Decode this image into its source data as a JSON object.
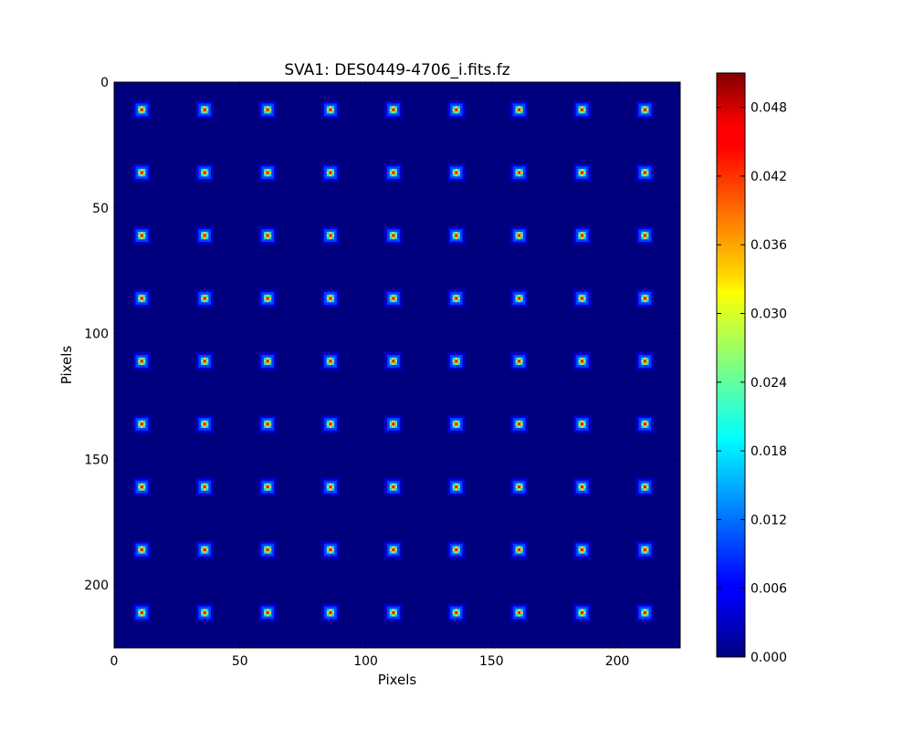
{
  "chart_data": {
    "type": "heatmap",
    "title": "SVA1: DES0449-4706_i.fits.fz",
    "xlabel": "Pixels",
    "ylabel": "Pixels",
    "xlim": [
      0,
      225
    ],
    "ylim": [
      225,
      0
    ],
    "y_axis_inverted": true,
    "x_ticks": [
      0,
      50,
      100,
      150,
      200
    ],
    "y_ticks": [
      0,
      50,
      100,
      150,
      200
    ],
    "colormap": "jet",
    "background_value": 0.0,
    "grid": false,
    "psf_stamps": {
      "x_centers": [
        11,
        36,
        61,
        86,
        111,
        136,
        161,
        186,
        211
      ],
      "y_centers": [
        11,
        36,
        61,
        86,
        111,
        136,
        161,
        186,
        211
      ],
      "peak_value": 0.05
    },
    "colorbar": {
      "vmin": 0.0,
      "vmax": 0.051,
      "ticks": [
        0.0,
        0.006,
        0.012,
        0.018,
        0.024,
        0.03,
        0.036,
        0.042,
        0.048
      ],
      "tick_labels": [
        "0.000",
        "0.006",
        "0.012",
        "0.018",
        "0.024",
        "0.030",
        "0.036",
        "0.042",
        "0.048"
      ],
      "placement": "right"
    }
  }
}
